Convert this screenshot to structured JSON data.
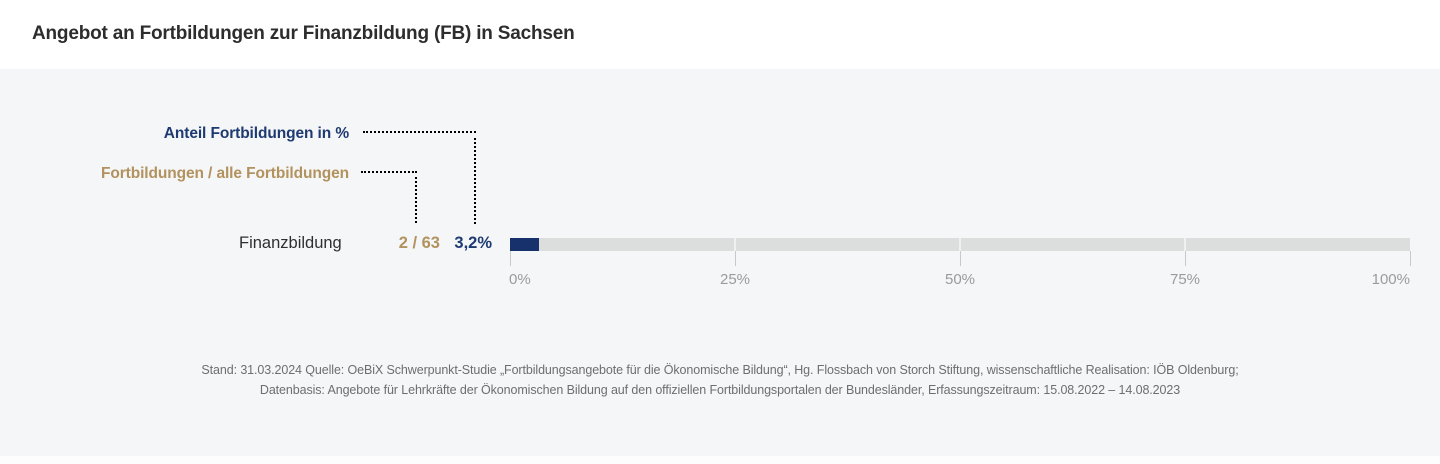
{
  "title": "Angebot an Fortbildungen zur Finanzbildung (FB) in Sachsen",
  "legend": {
    "percent_label": "Anteil Fortbildungen in %",
    "ratio_label": "Fortbildungen / alle Fortbildungen"
  },
  "chart_data": {
    "type": "bar",
    "orientation": "horizontal",
    "title": "Angebot an Fortbildungen zur Finanzbildung (FB) in Sachsen",
    "categories": [
      "Finanzbildung"
    ],
    "values": [
      3.2
    ],
    "value_labels": [
      "3,2%"
    ],
    "ratio_labels": [
      "2 / 63"
    ],
    "counts": [
      {
        "fortbildungen": 2,
        "alle_fortbildungen": 63
      }
    ],
    "xlim": [
      0,
      100
    ],
    "x_ticks": [
      "0%",
      "25%",
      "50%",
      "75%",
      "100%"
    ],
    "grid": false,
    "legend_position": "top-left"
  },
  "footer": {
    "line1": "Stand: 31.03.2024 Quelle: OeBiX Schwerpunkt-Studie „Fortbildungsangebote für die Ökonomische Bildung“, Hg. Flossbach von Storch Stiftung, wissenschaftliche Realisation: IÖB Oldenburg;",
    "line2": "Datenbasis: Angebote für Lehrkräfte der Ökonomischen Bildung auf den offiziellen Fortbildungsportalen der Bundesländer, Erfassungszeitraum: 15.08.2022 – 14.08.2023"
  },
  "colors": {
    "bg": "#f5f6f7",
    "navy_bar": "#16316b",
    "navy_text": "#1e3a72",
    "gold": "#b2925e",
    "navy_dots": "#aab4c8",
    "gold_dots": "#d8c6a5",
    "track": "#dcdddd",
    "tick": "#c8c9c9",
    "axis_label": "#9b9b9b",
    "footer_text": "#6e6e6e"
  }
}
